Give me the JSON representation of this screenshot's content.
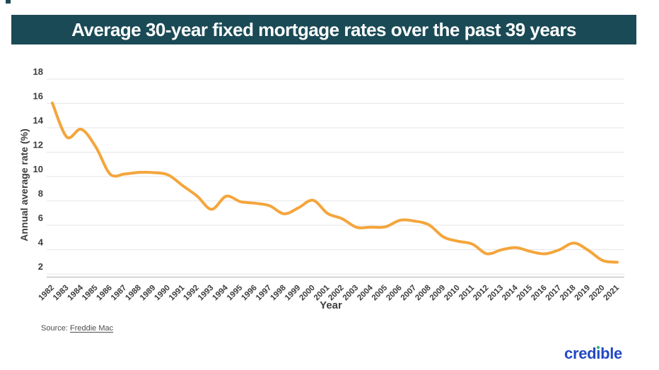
{
  "header": {
    "title": "Average 30-year fixed mortgage rates over the past 39 years"
  },
  "chart_data": {
    "type": "line",
    "title": "Average 30-year fixed mortgage rates over the past 39 years",
    "xlabel": "Year",
    "ylabel": "Annual average rate (%)",
    "ylim": [
      2,
      18
    ],
    "yticks": [
      2,
      4,
      6,
      8,
      10,
      12,
      14,
      16,
      18
    ],
    "grid": true,
    "legend_position": "none",
    "series": [
      {
        "name": "Average 30-year fixed mortgage rate",
        "x": [
          1982,
          1983,
          1984,
          1985,
          1986,
          1987,
          1988,
          1989,
          1990,
          1991,
          1992,
          1993,
          1994,
          1995,
          1996,
          1997,
          1998,
          1999,
          2000,
          2001,
          2002,
          2003,
          2004,
          2005,
          2006,
          2007,
          2008,
          2009,
          2010,
          2011,
          2012,
          2013,
          2014,
          2015,
          2016,
          2017,
          2018,
          2019,
          2020,
          2021
        ],
        "values": [
          16.04,
          13.24,
          13.88,
          12.43,
          10.19,
          10.21,
          10.34,
          10.32,
          10.13,
          9.25,
          8.39,
          7.31,
          8.38,
          7.93,
          7.81,
          7.6,
          6.94,
          7.44,
          8.05,
          6.97,
          6.54,
          5.83,
          5.84,
          5.87,
          6.41,
          6.34,
          6.03,
          5.04,
          4.69,
          4.45,
          3.66,
          3.98,
          4.17,
          3.85,
          3.65,
          3.99,
          4.54,
          3.94,
          3.1,
          2.96
        ]
      }
    ]
  },
  "source": {
    "label": "Source:",
    "link_text": "Freddie Mac"
  },
  "logo": {
    "text": "credible",
    "left": "cred",
    "right": "ble"
  },
  "colors": {
    "header_bg": "#1A4A56",
    "line": "#F4A53C",
    "grid": "#E6E6E6",
    "axis_line": "#C8C8C8",
    "tick_text": "#3D3D3D",
    "source_text": "#4D4D4D",
    "logo_blue": "#2149C4",
    "logo_green": "#21B573"
  }
}
